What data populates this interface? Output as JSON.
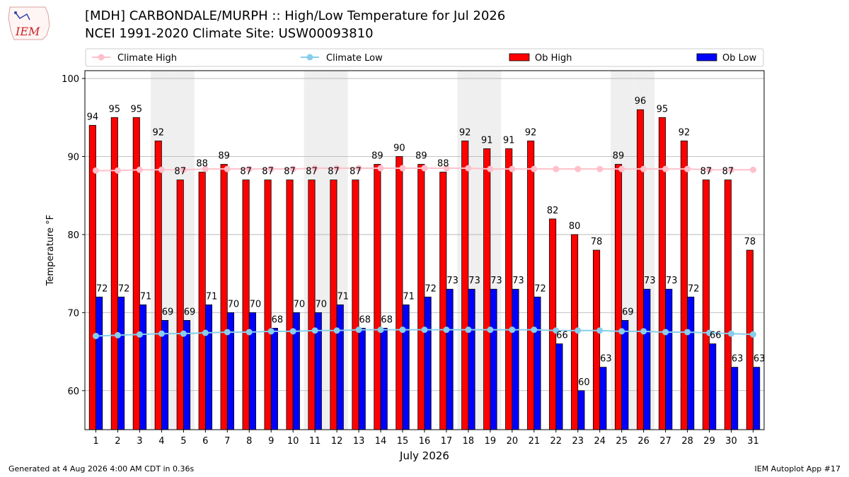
{
  "header": {
    "title_line1": "[MDH] CARBONDALE/MURPH :: High/Low Temperature for Jul 2026",
    "title_line2": "NCEI 1991-2020 Climate Site: USW00093810",
    "logo_text": "IEM"
  },
  "footer": {
    "generated": "Generated at 4 Aug 2026 4:00 AM CDT in 0.36s",
    "app": "IEM Autoplot App #17"
  },
  "chart_data": {
    "type": "bar",
    "xlabel": "July 2026",
    "ylabel": "Temperature °F",
    "ylim": [
      55,
      101
    ],
    "yticks": [
      60,
      70,
      80,
      90,
      100
    ],
    "grid": true,
    "legend_placement": "top",
    "x": [
      1,
      2,
      3,
      4,
      5,
      6,
      7,
      8,
      9,
      10,
      11,
      12,
      13,
      14,
      15,
      16,
      17,
      18,
      19,
      20,
      21,
      22,
      23,
      24,
      25,
      26,
      27,
      28,
      29,
      30,
      31
    ],
    "weekend_days": [
      4,
      5,
      11,
      12,
      18,
      19,
      25,
      26
    ],
    "legend": [
      {
        "name": "Climate High",
        "kind": "line",
        "color": "#ffc0cb"
      },
      {
        "name": "Climate Low",
        "kind": "line",
        "color": "#87ceeb"
      },
      {
        "name": "Ob High",
        "kind": "bar",
        "color": "#ff0000"
      },
      {
        "name": "Ob Low",
        "kind": "bar",
        "color": "#0000ff"
      }
    ],
    "series": [
      {
        "name": "Ob High",
        "kind": "bar",
        "color": "#ff0000",
        "values": [
          94,
          95,
          95,
          92,
          87,
          88,
          89,
          87,
          87,
          87,
          87,
          87,
          87,
          89,
          90,
          89,
          88,
          92,
          91,
          91,
          92,
          82,
          80,
          78,
          89,
          96,
          95,
          92,
          87,
          87,
          78
        ]
      },
      {
        "name": "Ob Low",
        "kind": "bar",
        "color": "#0000ff",
        "values": [
          72,
          72,
          71,
          69,
          69,
          71,
          70,
          70,
          68,
          70,
          70,
          71,
          68,
          68,
          71,
          72,
          73,
          73,
          73,
          73,
          72,
          66,
          60,
          63,
          69,
          73,
          73,
          72,
          66,
          63,
          63
        ]
      },
      {
        "name": "Climate High",
        "kind": "line",
        "color": "#ffc0cb",
        "values": [
          88.2,
          88.2,
          88.3,
          88.3,
          88.3,
          88.4,
          88.4,
          88.4,
          88.4,
          88.4,
          88.5,
          88.5,
          88.5,
          88.5,
          88.5,
          88.5,
          88.5,
          88.5,
          88.4,
          88.4,
          88.4,
          88.4,
          88.4,
          88.4,
          88.4,
          88.4,
          88.4,
          88.4,
          88.3,
          88.3,
          88.3
        ]
      },
      {
        "name": "Climate Low",
        "kind": "line",
        "color": "#87ceeb",
        "values": [
          67.0,
          67.1,
          67.2,
          67.3,
          67.3,
          67.4,
          67.5,
          67.5,
          67.6,
          67.6,
          67.7,
          67.7,
          67.8,
          67.8,
          67.8,
          67.8,
          67.8,
          67.8,
          67.8,
          67.8,
          67.8,
          67.7,
          67.7,
          67.7,
          67.6,
          67.6,
          67.5,
          67.5,
          67.4,
          67.3,
          67.2
        ]
      }
    ]
  }
}
